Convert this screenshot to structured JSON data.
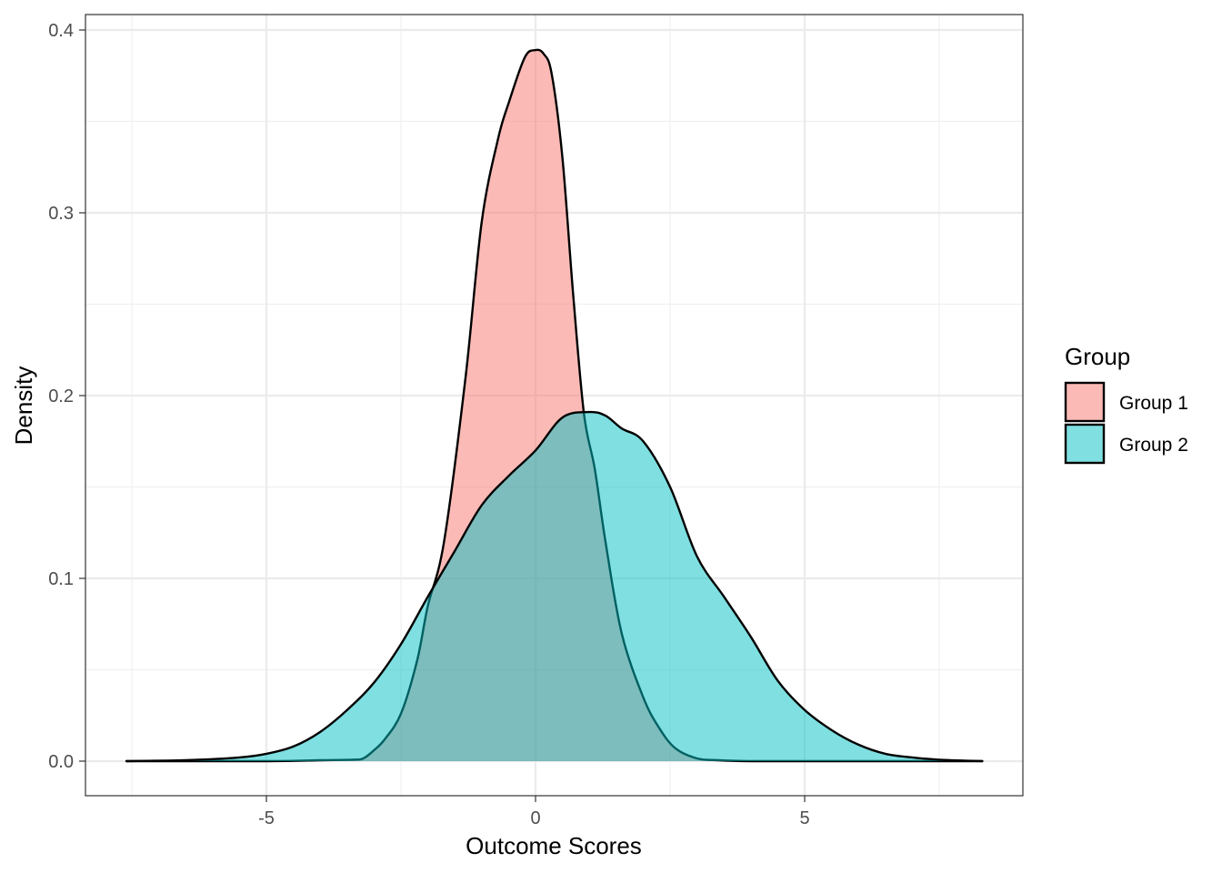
{
  "chart_data": {
    "type": "area",
    "subtype": "density",
    "title": "",
    "xlabel": "Outcome Scores",
    "ylabel": "Density",
    "xlim": [
      -7.6,
      8.3
    ],
    "ylim": [
      0,
      0.4
    ],
    "x_ticks": [
      -5,
      0,
      5
    ],
    "x_tick_labels": [
      "-5",
      "0",
      "5"
    ],
    "y_ticks": [
      0,
      0.1,
      0.2,
      0.3,
      0.4
    ],
    "y_tick_labels": [
      "0.0",
      "0.1",
      "0.2",
      "0.3",
      "0.4"
    ],
    "grid": true,
    "legend": {
      "title": "Group",
      "position": "right"
    },
    "series": [
      {
        "name": "Group 1",
        "color": "#F8766D",
        "points": [
          [
            -7.6,
            0.0
          ],
          [
            -5.0,
            0.0
          ],
          [
            -4.0,
            0.0005
          ],
          [
            -3.4,
            0.0008
          ],
          [
            -3.2,
            0.0015
          ],
          [
            -3.0,
            0.006
          ],
          [
            -2.8,
            0.012
          ],
          [
            -2.5,
            0.026
          ],
          [
            -2.2,
            0.055
          ],
          [
            -2.0,
            0.085
          ],
          [
            -1.7,
            0.12
          ],
          [
            -1.3,
            0.21
          ],
          [
            -1.0,
            0.295
          ],
          [
            -0.7,
            0.34
          ],
          [
            -0.5,
            0.36
          ],
          [
            -0.2,
            0.385
          ],
          [
            0.0,
            0.389
          ],
          [
            0.15,
            0.387
          ],
          [
            0.3,
            0.376
          ],
          [
            0.5,
            0.33
          ],
          [
            0.7,
            0.255
          ],
          [
            0.9,
            0.19
          ],
          [
            1.1,
            0.16
          ],
          [
            1.3,
            0.12
          ],
          [
            1.6,
            0.07
          ],
          [
            2.0,
            0.035
          ],
          [
            2.3,
            0.018
          ],
          [
            2.6,
            0.007
          ],
          [
            3.0,
            0.0015
          ],
          [
            3.4,
            0.0005
          ],
          [
            4.0,
            0.0
          ],
          [
            5.0,
            0.0
          ],
          [
            8.3,
            0.0
          ]
        ]
      },
      {
        "name": "Group 2",
        "color": "#00BFC4",
        "points": [
          [
            -7.6,
            0.0
          ],
          [
            -6.5,
            0.0005
          ],
          [
            -5.5,
            0.002
          ],
          [
            -5.0,
            0.004
          ],
          [
            -4.5,
            0.008
          ],
          [
            -4.0,
            0.016
          ],
          [
            -3.5,
            0.028
          ],
          [
            -3.0,
            0.043
          ],
          [
            -2.5,
            0.064
          ],
          [
            -2.0,
            0.09
          ],
          [
            -1.5,
            0.115
          ],
          [
            -1.0,
            0.14
          ],
          [
            -0.5,
            0.156
          ],
          [
            0.0,
            0.17
          ],
          [
            0.5,
            0.188
          ],
          [
            1.0,
            0.191
          ],
          [
            1.3,
            0.189
          ],
          [
            1.6,
            0.182
          ],
          [
            2.0,
            0.175
          ],
          [
            2.5,
            0.15
          ],
          [
            3.0,
            0.112
          ],
          [
            3.5,
            0.09
          ],
          [
            4.0,
            0.068
          ],
          [
            4.5,
            0.044
          ],
          [
            5.0,
            0.028
          ],
          [
            5.5,
            0.017
          ],
          [
            6.0,
            0.009
          ],
          [
            6.5,
            0.004
          ],
          [
            7.0,
            0.002
          ],
          [
            7.5,
            0.0008
          ],
          [
            8.3,
            0.0
          ]
        ]
      }
    ]
  }
}
